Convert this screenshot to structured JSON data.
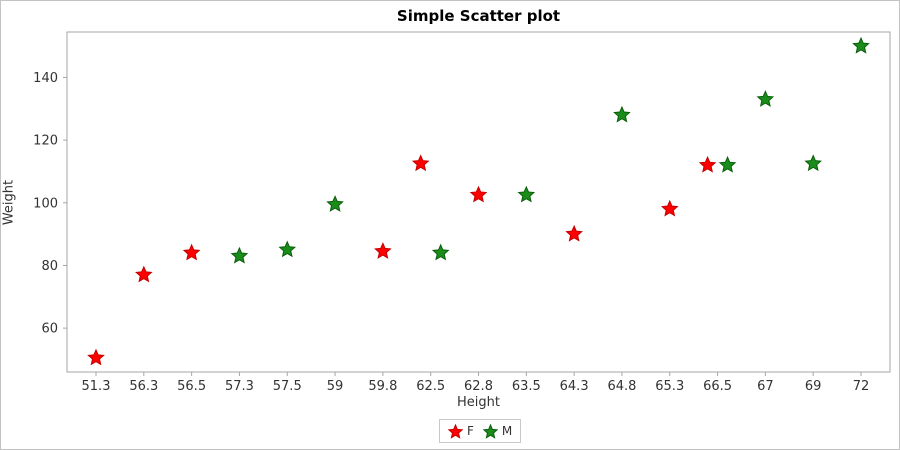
{
  "title": "Simple Scatter plot",
  "chart_data": {
    "type": "scatter",
    "title": "Simple Scatter plot",
    "xlabel": "Height",
    "ylabel": "Weight",
    "x_axis_type": "discrete",
    "x_categories": [
      "51.3",
      "56.3",
      "56.5",
      "57.3",
      "57.5",
      "59",
      "59.8",
      "62.5",
      "62.8",
      "63.5",
      "64.3",
      "64.8",
      "65.3",
      "66.5",
      "67",
      "69",
      "72"
    ],
    "y_ticks": [
      60,
      80,
      100,
      120,
      140
    ],
    "ylim": [
      46,
      154.5
    ],
    "grid": false,
    "legend_position": "bottom-center",
    "marker": "filled-star",
    "series": [
      {
        "name": "F",
        "color": "#ff0000",
        "stroke": "#c40000",
        "points": [
          {
            "x": "51.3",
            "y": 50.5
          },
          {
            "x": "56.3",
            "y": 77
          },
          {
            "x": "56.5",
            "y": 84
          },
          {
            "x": "59.8",
            "y": 84.5
          },
          {
            "x": "62.5",
            "y": 112.5
          },
          {
            "x": "62.8",
            "y": 102.5
          },
          {
            "x": "64.3",
            "y": 90
          },
          {
            "x": "65.3",
            "y": 98
          },
          {
            "x": "66.5",
            "y": 112
          }
        ]
      },
      {
        "name": "M",
        "color": "#1a8c1a",
        "stroke": "#0b5e0b",
        "points": [
          {
            "x": "57.3",
            "y": 83
          },
          {
            "x": "57.5",
            "y": 85
          },
          {
            "x": "59",
            "y": 99.5
          },
          {
            "x": "62.5",
            "y": 84
          },
          {
            "x": "63.5",
            "y": 102.5
          },
          {
            "x": "64.8",
            "y": 128
          },
          {
            "x": "66.5",
            "y": 112
          },
          {
            "x": "67",
            "y": 133
          },
          {
            "x": "69",
            "y": 112.5
          },
          {
            "x": "72",
            "y": 150
          }
        ]
      }
    ]
  },
  "axis_style": {
    "line_color": "#a6a6a6",
    "tick_label_color": "#333333"
  }
}
